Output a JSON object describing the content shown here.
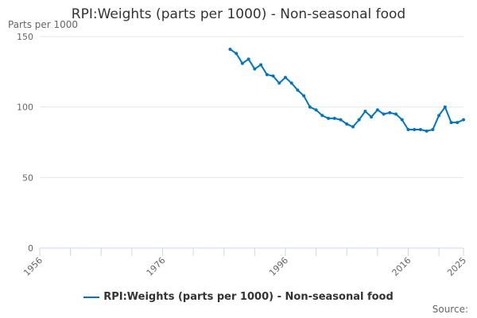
{
  "chart_data": {
    "type": "line",
    "title": "RPI:Weights (parts per 1000) - Non-seasonal food",
    "ylabel": "Parts per 1000",
    "xlabel": "",
    "xlim": [
      1956,
      2025
    ],
    "ylim": [
      0,
      150
    ],
    "x_tick_labels": [
      "1956",
      "1976",
      "1996",
      "2016",
      "2025"
    ],
    "y_tick_labels": [
      "0",
      "50",
      "100",
      "150"
    ],
    "grid": "horizontal",
    "legend_position": "bottom",
    "color": "#0075c2",
    "series": [
      {
        "name": "RPI:Weights (parts per 1000) - Non-seasonal food",
        "x": [
          1987,
          1988,
          1989,
          1990,
          1991,
          1992,
          1993,
          1994,
          1995,
          1996,
          1997,
          1998,
          1999,
          2000,
          2001,
          2002,
          2003,
          2004,
          2005,
          2006,
          2007,
          2008,
          2009,
          2010,
          2011,
          2012,
          2013,
          2014,
          2015,
          2016,
          2017,
          2018,
          2019,
          2020,
          2021,
          2022,
          2023,
          2024,
          2025
        ],
        "values": [
          141,
          138,
          131,
          134,
          127,
          130,
          123,
          122,
          117,
          121,
          117,
          112,
          108,
          100,
          98,
          94,
          92,
          92,
          91,
          88,
          86,
          91,
          97,
          93,
          98,
          95,
          96,
          95,
          91,
          84,
          84,
          84,
          83,
          84,
          94,
          100,
          89,
          89,
          91
        ]
      }
    ],
    "source": "Source:"
  }
}
